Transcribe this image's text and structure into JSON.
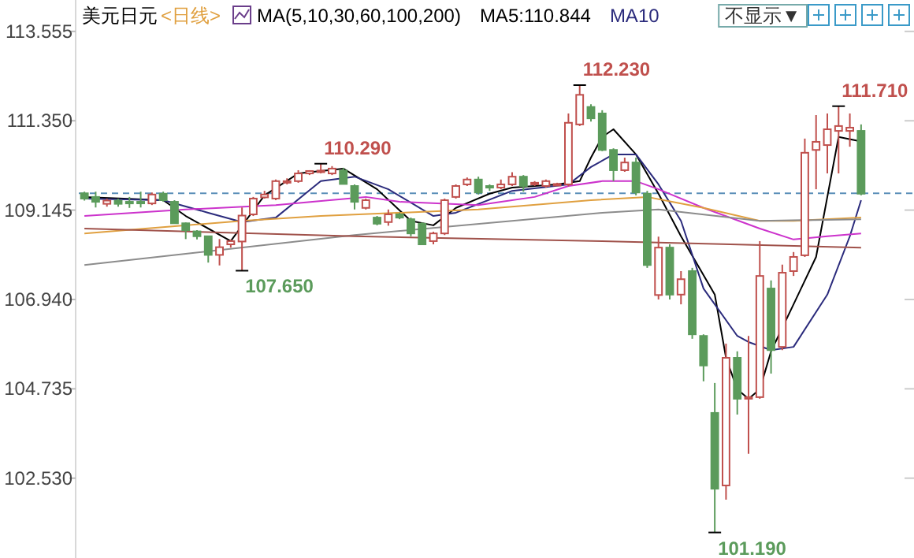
{
  "chart_data": {
    "type": "candlestick",
    "title": "美元日元",
    "subtitle": "<日线>",
    "legend_title": "MA(5,10,30,60,100,200)",
    "legend": "top",
    "tick_labels": "y",
    "categories": [
      null,
      null,
      null,
      null,
      null,
      null,
      null,
      null,
      null,
      null,
      null,
      null,
      null,
      null,
      null,
      null,
      null,
      null,
      null,
      null,
      null,
      null,
      null,
      null,
      null,
      null,
      null,
      null,
      null,
      null,
      null,
      null,
      null,
      null,
      null,
      null,
      null,
      null,
      null,
      null,
      null,
      null,
      null,
      null,
      null,
      null,
      null,
      null,
      null,
      null,
      null,
      null,
      null,
      null,
      null,
      null,
      null,
      null,
      null,
      null,
      null,
      null,
      null,
      null,
      null,
      null,
      null,
      null,
      null,
      null
    ],
    "ylim": [
      100.56,
      114.33
    ],
    "yticks": [
      113.555,
      {
        "value": 111.35,
        "label": "111.350"
      },
      109.145,
      {
        "value": 106.94,
        "label": "106.940"
      },
      104.735,
      {
        "value": 102.53,
        "label": "102.530"
      }
    ],
    "ohlc": [
      [
        109.56,
        109.6,
        109.38,
        109.43
      ],
      [
        109.47,
        109.6,
        109.21,
        109.35
      ],
      [
        109.3,
        109.43,
        109.23,
        109.38
      ],
      [
        109.38,
        109.43,
        109.23,
        109.3
      ],
      [
        109.35,
        109.47,
        109.2,
        109.31
      ],
      [
        109.35,
        109.6,
        109.21,
        109.33
      ],
      [
        109.31,
        109.58,
        109.27,
        109.53
      ],
      [
        109.55,
        109.6,
        109.35,
        109.39
      ],
      [
        109.35,
        109.39,
        108.81,
        108.82
      ],
      [
        108.82,
        108.84,
        108.43,
        108.65
      ],
      [
        108.62,
        108.65,
        108.42,
        108.5
      ],
      [
        108.5,
        108.51,
        107.85,
        108.04
      ],
      [
        108.04,
        108.43,
        107.78,
        108.23
      ],
      [
        108.3,
        108.42,
        108.22,
        108.38
      ],
      [
        108.37,
        109.21,
        107.65,
        109.01
      ],
      [
        109.04,
        109.47,
        109.0,
        109.43
      ],
      [
        109.46,
        109.62,
        109.43,
        109.53
      ],
      [
        109.43,
        109.9,
        109.39,
        109.86
      ],
      [
        109.84,
        109.93,
        109.78,
        109.86
      ],
      [
        109.86,
        110.13,
        109.82,
        110.05
      ],
      [
        110.05,
        110.13,
        110.01,
        110.11
      ],
      [
        110.1,
        110.29,
        110.05,
        110.12
      ],
      [
        110.05,
        110.23,
        110.01,
        110.17
      ],
      [
        110.12,
        110.19,
        109.78,
        109.79
      ],
      [
        109.74,
        109.78,
        109.16,
        109.35
      ],
      [
        109.2,
        109.43,
        109.16,
        109.39
      ],
      [
        108.96,
        109.0,
        108.77,
        108.81
      ],
      [
        108.85,
        109.16,
        108.76,
        109.04
      ],
      [
        109.04,
        109.08,
        108.92,
        108.96
      ],
      [
        108.92,
        108.96,
        108.5,
        108.57
      ],
      [
        108.81,
        108.84,
        108.3,
        108.3
      ],
      [
        108.38,
        108.61,
        108.3,
        108.57
      ],
      [
        108.57,
        109.43,
        108.53,
        109.39
      ],
      [
        109.47,
        109.78,
        109.43,
        109.74
      ],
      [
        109.78,
        109.95,
        109.74,
        109.9
      ],
      [
        109.9,
        109.97,
        109.53,
        109.58
      ],
      [
        109.74,
        109.78,
        109.62,
        109.7
      ],
      [
        109.7,
        109.9,
        109.66,
        109.78
      ],
      [
        109.78,
        110.08,
        109.74,
        109.97
      ],
      [
        109.97,
        110.01,
        109.6,
        109.74
      ],
      [
        109.8,
        109.86,
        109.74,
        109.82
      ],
      [
        109.74,
        109.9,
        109.7,
        109.86
      ],
      [
        109.78,
        109.82,
        109.74,
        109.79
      ],
      [
        109.78,
        111.53,
        109.73,
        111.3
      ],
      [
        111.26,
        112.23,
        111.22,
        111.99
      ],
      [
        111.69,
        111.76,
        111.33,
        111.41
      ],
      [
        111.53,
        111.61,
        110.6,
        110.63
      ],
      [
        110.63,
        110.67,
        109.86,
        110.13
      ],
      [
        110.13,
        110.44,
        110.09,
        110.32
      ],
      [
        110.32,
        110.44,
        109.51,
        109.58
      ],
      [
        109.55,
        109.62,
        107.72,
        107.79
      ],
      [
        107.05,
        108.49,
        106.94,
        108.22
      ],
      [
        108.22,
        108.3,
        106.94,
        107.06
      ],
      [
        107.06,
        107.64,
        106.82,
        107.44
      ],
      [
        107.64,
        107.72,
        105.97,
        106.08
      ],
      [
        106.04,
        106.08,
        104.92,
        105.31
      ],
      [
        104.14,
        104.88,
        101.19,
        102.27
      ],
      [
        102.35,
        105.85,
        102.0,
        105.5
      ],
      [
        105.5,
        105.66,
        104.1,
        104.49
      ],
      [
        104.49,
        106.04,
        103.13,
        104.53
      ],
      [
        104.53,
        108.38,
        104.49,
        107.52
      ],
      [
        107.21,
        107.41,
        105.11,
        105.69
      ],
      [
        105.77,
        107.8,
        105.69,
        107.6
      ],
      [
        107.64,
        108.11,
        107.52,
        107.99
      ],
      [
        108.03,
        110.91,
        107.99,
        110.56
      ],
      [
        110.63,
        111.49,
        109.66,
        110.83
      ],
      [
        110.75,
        111.53,
        110.05,
        111.14
      ],
      [
        111.1,
        111.71,
        110.05,
        111.22
      ],
      [
        111.1,
        111.53,
        110.71,
        111.18
      ],
      [
        111.1,
        111.26,
        109.51,
        109.55
      ]
    ],
    "colors": [
      "#5b9b5b",
      "#5b9b5b",
      "#c0504d",
      "#5b9b5b",
      "#5b9b5b",
      "#5b9b5b",
      "#c0504d",
      "#5b9b5b",
      "#5b9b5b",
      "#5b9b5b",
      "#5b9b5b",
      "#5b9b5b",
      "#c0504d",
      "#c0504d",
      "#c0504d",
      "#c0504d",
      "#c0504d",
      "#c0504d",
      "#c0504d",
      "#c0504d",
      "#c0504d",
      "#c0504d",
      "#c0504d",
      "#5b9b5b",
      "#5b9b5b",
      "#c0504d",
      "#5b9b5b",
      "#c0504d",
      "#5b9b5b",
      "#5b9b5b",
      "#5b9b5b",
      "#c0504d",
      "#c0504d",
      "#c0504d",
      "#c0504d",
      "#5b9b5b",
      "#5b9b5b",
      "#c0504d",
      "#c0504d",
      "#5b9b5b",
      "#c0504d",
      "#c0504d",
      "#c0504d",
      "#c0504d",
      "#c0504d",
      "#5b9b5b",
      "#5b9b5b",
      "#5b9b5b",
      "#c0504d",
      "#5b9b5b",
      "#5b9b5b",
      "#c0504d",
      "#5b9b5b",
      "#c0504d",
      "#5b9b5b",
      "#5b9b5b",
      "#5b9b5b",
      "#c0504d",
      "#5b9b5b",
      "#c0504d",
      "#c0504d",
      "#5b9b5b",
      "#c0504d",
      "#c0504d",
      "#c0504d",
      "#c0504d",
      "#c0504d",
      "#c0504d",
      "#c0504d",
      "#5b9b5b"
    ],
    "series": [
      {
        "type": "line",
        "name": "MA5:110.844",
        "color": "#000000",
        "values": [
          109.47,
          null,
          null,
          null,
          null,
          null,
          null,
          109.39,
          null,
          109.0,
          null,
          null,
          null,
          108.38,
          null,
          null,
          109.51,
          null,
          null,
          110.05,
          null,
          null,
          null,
          110.17,
          null,
          null,
          109.66,
          null,
          null,
          108.88,
          null,
          108.77,
          null,
          109.2,
          null,
          null,
          109.55,
          null,
          109.7,
          null,
          null,
          null,
          109.78,
          null,
          109.86,
          110.44,
          110.95,
          111.14,
          null,
          110.52,
          null,
          109.55,
          null,
          108.5,
          null,
          null,
          107.06,
          105.5,
          104.72,
          104.49,
          104.72,
          105.66,
          null,
          106.82,
          null,
          107.99,
          null,
          110.95,
          null,
          110.84
        ]
      },
      {
        "type": "line",
        "name": "MA10",
        "color": "#2b2b7c",
        "values": [
          109.43,
          null,
          null,
          null,
          null,
          null,
          null,
          109.39,
          null,
          null,
          null,
          109.08,
          null,
          null,
          108.85,
          null,
          null,
          108.96,
          null,
          null,
          null,
          109.86,
          null,
          null,
          109.97,
          null,
          null,
          109.66,
          null,
          null,
          null,
          109.0,
          null,
          109.08,
          null,
          null,
          null,
          null,
          109.62,
          null,
          null,
          null,
          null,
          109.78,
          null,
          110.21,
          null,
          110.52,
          null,
          110.52,
          null,
          109.78,
          null,
          108.88,
          null,
          107.21,
          null,
          null,
          106.04,
          105.89,
          null,
          105.69,
          null,
          105.77,
          null,
          null,
          107.06,
          null,
          108.5,
          109.39
        ]
      },
      {
        "type": "line",
        "color": "#cc33cc",
        "values": [
          109.0,
          null,
          null,
          null,
          null,
          null,
          null,
          null,
          null,
          109.16,
          null,
          null,
          null,
          null,
          null,
          null,
          null,
          109.27,
          null,
          null,
          null,
          null,
          null,
          null,
          null,
          109.47,
          null,
          null,
          109.35,
          null,
          null,
          null,
          null,
          null,
          null,
          109.27,
          null,
          null,
          null,
          null,
          109.47,
          null,
          null,
          109.74,
          null,
          null,
          109.86,
          null,
          null,
          109.86,
          null,
          109.66,
          null,
          null,
          null,
          109.2,
          null,
          null,
          null,
          null,
          108.69,
          null,
          null,
          108.42,
          null,
          null,
          108.5,
          null,
          null,
          108.57
        ]
      },
      {
        "type": "line",
        "color": "#e0a040",
        "values": [
          108.57,
          null,
          null,
          null,
          null,
          null,
          null,
          null,
          null,
          null,
          null,
          null,
          null,
          null,
          108.88,
          null,
          null,
          null,
          null,
          null,
          null,
          109.0,
          null,
          null,
          null,
          null,
          null,
          null,
          null,
          null,
          null,
          null,
          null,
          null,
          null,
          109.16,
          null,
          null,
          null,
          null,
          null,
          null,
          null,
          null,
          null,
          109.39,
          null,
          null,
          null,
          null,
          109.47,
          null,
          null,
          null,
          null,
          109.2,
          null,
          null,
          null,
          null,
          108.88,
          null,
          null,
          108.88,
          null,
          null,
          null,
          null,
          null,
          108.96
        ]
      },
      {
        "type": "line",
        "color": "#8c8c8c",
        "values": [
          107.79,
          null,
          null,
          null,
          null,
          null,
          null,
          null,
          null,
          null,
          null,
          null,
          null,
          null,
          null,
          null,
          null,
          null,
          null,
          null,
          null,
          null,
          null,
          null,
          108.53,
          null,
          null,
          null,
          null,
          null,
          null,
          null,
          null,
          null,
          null,
          null,
          null,
          null,
          null,
          null,
          null,
          null,
          null,
          null,
          null,
          null,
          109.08,
          null,
          null,
          null,
          null,
          109.16,
          null,
          null,
          null,
          null,
          null,
          null,
          null,
          null,
          108.88,
          null,
          null,
          null,
          null,
          null,
          null,
          null,
          null,
          108.92
        ]
      },
      {
        "type": "line",
        "color": "#a0524b",
        "values": [
          108.69,
          null,
          null,
          null,
          null,
          null,
          null,
          null,
          null,
          null,
          null,
          null,
          null,
          null,
          null,
          null,
          null,
          null,
          null,
          null,
          null,
          null,
          null,
          null,
          108.5,
          null,
          null,
          null,
          null,
          null,
          null,
          null,
          null,
          null,
          null,
          null,
          null,
          null,
          null,
          null,
          null,
          null,
          null,
          null,
          null,
          null,
          108.38,
          null,
          null,
          null,
          null,
          null,
          null,
          null,
          null,
          null,
          null,
          null,
          null,
          null,
          null,
          null,
          null,
          null,
          null,
          null,
          null,
          null,
          null,
          108.22
        ]
      }
    ],
    "ref_lines": [
      {
        "axis": "y",
        "value": 109.56,
        "color": "#5a8fb8",
        "line_style": "dashed"
      }
    ],
    "annotations": [
      "110.290",
      "107.650",
      "112.230",
      "101.190",
      "111.710",
      "不显示▼"
    ]
  }
}
